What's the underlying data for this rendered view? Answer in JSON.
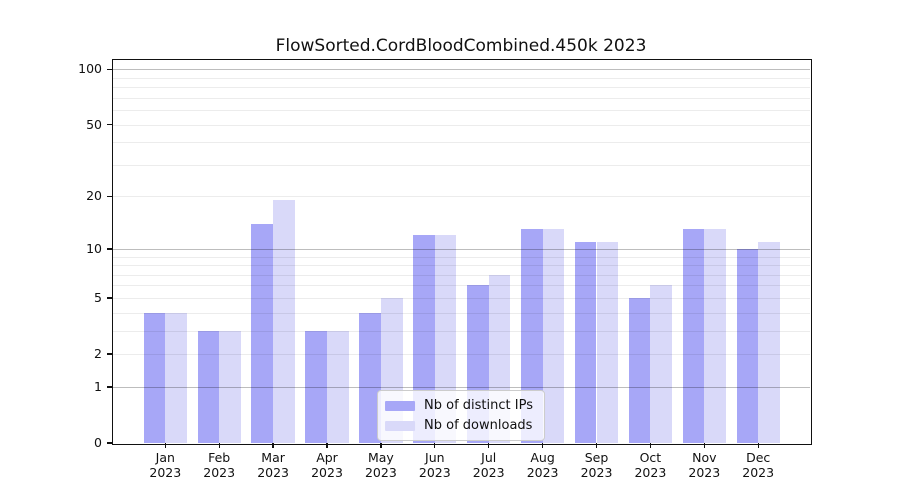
{
  "chart_data": {
    "type": "bar",
    "title": "FlowSorted.CordBloodCombined.450k 2023",
    "categories_months": [
      "Jan",
      "Feb",
      "Mar",
      "Apr",
      "May",
      "Jun",
      "Jul",
      "Aug",
      "Sep",
      "Oct",
      "Nov",
      "Dec"
    ],
    "categories_year": "2023",
    "series": [
      {
        "name": "Nb of distinct IPs",
        "color": "#a7a7f7",
        "values": [
          4,
          3,
          14,
          3,
          4,
          12,
          6,
          13,
          11,
          5,
          13,
          10
        ]
      },
      {
        "name": "Nb of downloads",
        "color": "#d9d9f9",
        "values": [
          4,
          3,
          19,
          3,
          5,
          12,
          7,
          13,
          11,
          6,
          13,
          11
        ]
      }
    ],
    "yscale": "log1p",
    "ylim": [
      0,
      113
    ],
    "yticks": [
      0,
      1,
      2,
      5,
      10,
      20,
      50,
      100
    ],
    "major_gridlines": [
      1,
      10,
      100
    ],
    "minor_gridlines": [
      2,
      3,
      4,
      5,
      6,
      7,
      8,
      9,
      20,
      30,
      40,
      50,
      60,
      70,
      80,
      90
    ],
    "grid": "horizontal",
    "legend_position": "lower center",
    "xlabel": "",
    "ylabel": ""
  },
  "colors": {
    "background": "#ffffff",
    "frame": "#111111",
    "text": "#111111",
    "major_grid": "rgba(0,0,0,0.26)",
    "minor_grid": "rgba(0,0,0,0.075)",
    "legend_bg": "rgba(255,255,255,0.8)",
    "legend_border": "#cccccc"
  }
}
